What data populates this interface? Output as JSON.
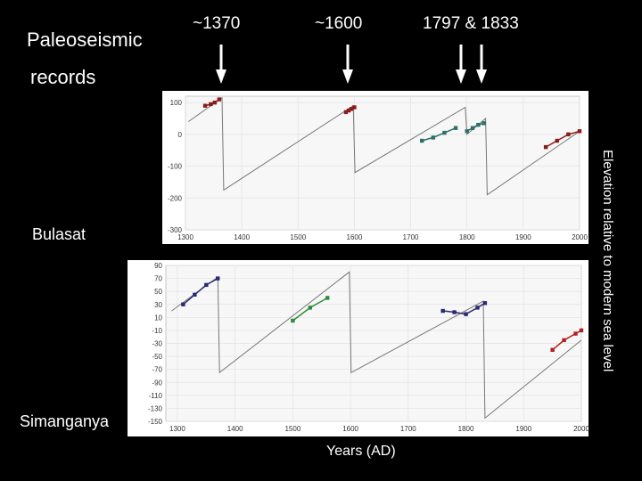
{
  "slide": {
    "title_line1": "Paleoseismic",
    "title_line2": "records",
    "events": [
      "~1370",
      "~1600",
      "1797 & 1833"
    ],
    "x_caption": "Years (AD)",
    "y_caption": "Elevation relative to modern sea level"
  },
  "colors": {
    "background": "#000000",
    "plot_bg": "#f7f7f7",
    "grid": "#e2e2e2",
    "model_line": "#777777",
    "red": "#8b1a1a",
    "teal": "#2e6f6a",
    "green": "#2d8a3a",
    "navy": "#2a2a70",
    "crimson": "#b02020"
  },
  "chart_data": [
    {
      "type": "line",
      "site_label": "Bulasat",
      "xlim": [
        1300,
        2000
      ],
      "ylim": [
        -300,
        120
      ],
      "xticks": [
        1300,
        1400,
        1500,
        1600,
        1700,
        1800,
        1900,
        2000
      ],
      "yticks": [
        100,
        0,
        -100,
        -200,
        -300
      ],
      "model_series": {
        "x": [
          1305,
          1365,
          1368,
          1598,
          1601,
          1797,
          1800,
          1833,
          1836,
          2000
        ],
        "y": [
          40,
          115,
          -175,
          90,
          -120,
          85,
          0,
          50,
          -190,
          10
        ]
      },
      "observed_series": [
        {
          "color": "red",
          "x": [
            1335,
            1345,
            1352,
            1360
          ],
          "y": [
            90,
            95,
            100,
            110
          ]
        },
        {
          "color": "red",
          "x": [
            1585,
            1590,
            1595,
            1600
          ],
          "y": [
            70,
            75,
            80,
            85
          ]
        },
        {
          "color": "teal",
          "x": [
            1720,
            1740,
            1760,
            1780
          ],
          "y": [
            -20,
            -10,
            5,
            20
          ]
        },
        {
          "color": "teal",
          "x": [
            1800,
            1810,
            1820,
            1830
          ],
          "y": [
            10,
            20,
            30,
            35
          ]
        },
        {
          "color": "red",
          "x": [
            1940,
            1960,
            1980,
            2000
          ],
          "y": [
            -40,
            -20,
            0,
            10
          ]
        }
      ]
    },
    {
      "type": "line",
      "site_label": "Simanganya",
      "xlim": [
        1280,
        2000
      ],
      "ylim": [
        -150,
        90
      ],
      "xticks": [
        1300,
        1400,
        1500,
        1600,
        1700,
        1800,
        1900,
        2000
      ],
      "yticks": [
        90,
        70,
        50,
        30,
        10,
        -10,
        -30,
        -50,
        -70,
        -90,
        -110,
        -130,
        -150
      ],
      "model_series": {
        "x": [
          1290,
          1370,
          1373,
          1598,
          1601,
          1830,
          1833,
          2000
        ],
        "y": [
          20,
          72,
          -75,
          80,
          -75,
          35,
          -145,
          -25
        ]
      },
      "observed_series": [
        {
          "color": "navy",
          "x": [
            1310,
            1330,
            1350,
            1370
          ],
          "y": [
            30,
            45,
            60,
            70
          ]
        },
        {
          "color": "green",
          "x": [
            1500,
            1530,
            1560
          ],
          "y": [
            5,
            25,
            40
          ]
        },
        {
          "color": "navy",
          "x": [
            1760,
            1780,
            1800,
            1820,
            1833
          ],
          "y": [
            20,
            18,
            15,
            25,
            32
          ]
        },
        {
          "color": "crimson",
          "x": [
            1950,
            1970,
            1990,
            2000
          ],
          "y": [
            -40,
            -25,
            -15,
            -10
          ]
        }
      ]
    }
  ]
}
